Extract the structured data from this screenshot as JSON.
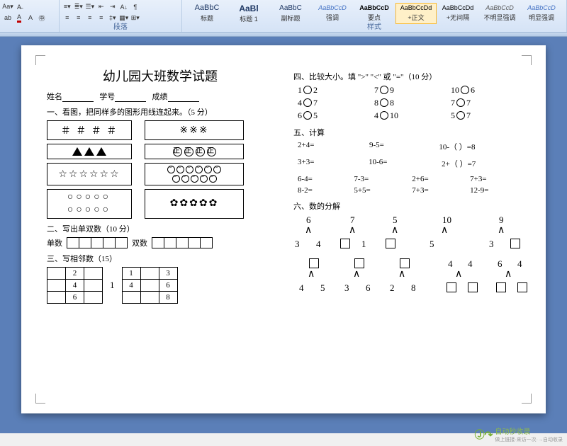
{
  "ribbon": {
    "paragraph_label": "段落",
    "styles_label": "样式",
    "font_color": "#c00000",
    "highlight_color": "#ffff00",
    "styles": [
      {
        "preview": "AaBbC",
        "name": "标题",
        "color": "#1f3864",
        "size": "11px"
      },
      {
        "preview": "AaBl",
        "name": "标题 1",
        "color": "#1f3864",
        "size": "12px",
        "bold": true
      },
      {
        "preview": "AaBbC",
        "name": "副标题",
        "color": "#1f3864",
        "size": "10px"
      },
      {
        "preview": "AaBbCcD",
        "name": "强调",
        "color": "#4472c4",
        "size": "9px",
        "italic": true
      },
      {
        "preview": "AaBbCcD",
        "name": "要点",
        "color": "#000",
        "size": "9px",
        "bold": true
      },
      {
        "preview": "AaBbCcDd",
        "name": "+正文",
        "color": "#000",
        "size": "9px",
        "active": true
      },
      {
        "preview": "AaBbCcDd",
        "name": "+无间隔",
        "color": "#000",
        "size": "9px"
      },
      {
        "preview": "AaBbCcD",
        "name": "不明显强调",
        "color": "#595959",
        "size": "9px",
        "italic": true
      },
      {
        "preview": "AaBbCcD",
        "name": "明显强调",
        "color": "#4472c4",
        "size": "9px",
        "italic": true
      }
    ]
  },
  "document": {
    "title": "幼儿园大班数学试题",
    "info": {
      "name_label": "姓名",
      "id_label": "学号",
      "score_label": "成绩"
    },
    "q1": {
      "heading": "一、看图，把同样多的图形用线连起来。（5 分）",
      "left_boxes": [
        "＃ ＃ ＃ ＃",
        "▲▲▲",
        "☆☆☆☆☆☆",
        "○○○○○\n○○○○○"
      ],
      "right_boxes": [
        "※※※",
        "㊣㊣㊣㊣",
        "☺☺☺☺☺☺\n☺☺☺☺☺",
        "✿✿✿✿✿"
      ]
    },
    "q2": {
      "heading": "二、写出单双数（10 分）",
      "odd_label": "单数",
      "even_label": "双数",
      "cells": 5
    },
    "q3": {
      "heading": "三、写相邻数（15）",
      "table_a": [
        [
          "",
          "2",
          ""
        ],
        [
          "",
          "4",
          ""
        ],
        [
          "",
          "6",
          ""
        ]
      ],
      "mid": "1",
      "table_b": [
        [
          "1",
          "",
          "3"
        ],
        [
          "4",
          "",
          "6"
        ],
        [
          "",
          "",
          "8"
        ]
      ]
    },
    "q4": {
      "heading": "四、比较大小。填 \">\" \"<\" 或 \"=\"（10 分）",
      "pairs": [
        [
          "1",
          "2"
        ],
        [
          "7",
          "9"
        ],
        [
          "10",
          "6"
        ],
        [
          "4",
          "7"
        ],
        [
          "8",
          "8"
        ],
        [
          "7",
          "7"
        ],
        [
          "6",
          "5"
        ],
        [
          "4",
          "10"
        ],
        [
          "5",
          "7"
        ]
      ]
    },
    "q5": {
      "heading": "五、计算",
      "row1": [
        "2+4=",
        "9-5=",
        "10-（  ）=8"
      ],
      "row2": [
        "3+3=",
        "10-6=",
        "2+（  ）=7"
      ],
      "grid": [
        "6-4=",
        "7-3=",
        "2+6=",
        "7+3=",
        "8-2=",
        "5+5=",
        "7+3=",
        "12-9="
      ]
    },
    "q6": {
      "heading": "六、数的分解",
      "tops": [
        "6",
        "7",
        "5",
        "10",
        "9"
      ],
      "mids_left": [
        "3",
        "4",
        "",
        "1",
        "",
        "5",
        "3",
        ""
      ],
      "bottoms": [
        {
          "top": "□",
          "l": "4",
          "r": "5"
        },
        {
          "top": "□",
          "l": "3",
          "r": "6"
        },
        {
          "top": "□",
          "l": "2",
          "r": "8"
        },
        {
          "top_l": "4",
          "top_r": "4",
          "l": "□",
          "r": "□"
        },
        {
          "top_l": "6",
          "top_r": "4",
          "l": "□",
          "r": "□"
        }
      ]
    }
  },
  "watermark": {
    "brand": "自动秒收录",
    "tagline": "做上链接·来访一次·→自动收录"
  }
}
